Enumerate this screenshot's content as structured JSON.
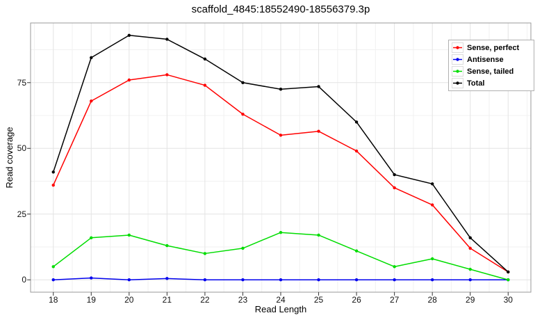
{
  "figure": {
    "background": "#ffffff",
    "panel_border_color": "#9a9a9a"
  },
  "chart_data": {
    "type": "line",
    "title": "scaffold_4845:18552490-18556379.3p",
    "xlabel": "Read Length",
    "ylabel": "Read coverage",
    "x": [
      18,
      19,
      20,
      21,
      22,
      23,
      24,
      25,
      26,
      27,
      28,
      29,
      30
    ],
    "series": [
      {
        "name": "Sense, perfect",
        "color": "#ff0000",
        "values": [
          36,
          68,
          76,
          78,
          74,
          63,
          55,
          56.5,
          49,
          35,
          28.5,
          12,
          3
        ]
      },
      {
        "name": "Antisense",
        "color": "#0000ee",
        "values": [
          0,
          0.7,
          0,
          0.5,
          0,
          0,
          0,
          0,
          0,
          0,
          0,
          0,
          0
        ]
      },
      {
        "name": "Sense, tailed",
        "color": "#00dd00",
        "values": [
          5,
          16,
          17,
          13,
          10,
          12,
          18,
          17,
          11,
          5,
          8,
          4,
          0
        ]
      },
      {
        "name": "Total",
        "color": "#000000",
        "values": [
          41,
          84.5,
          93,
          91.5,
          84,
          75,
          72.5,
          73.5,
          60,
          40,
          36.5,
          16,
          3
        ]
      }
    ],
    "xticks": [
      18,
      19,
      20,
      21,
      22,
      23,
      24,
      25,
      26,
      27,
      28,
      29,
      30
    ],
    "yticks": [
      0,
      25,
      50,
      75
    ],
    "xlim": [
      17.4,
      30.6
    ],
    "ylim": [
      -4.7,
      97.7
    ],
    "grid": "major+minor",
    "grid_major_color": "#e3e3e3",
    "grid_minor_color": "#f1f1f1",
    "legend_position": "top-right"
  }
}
